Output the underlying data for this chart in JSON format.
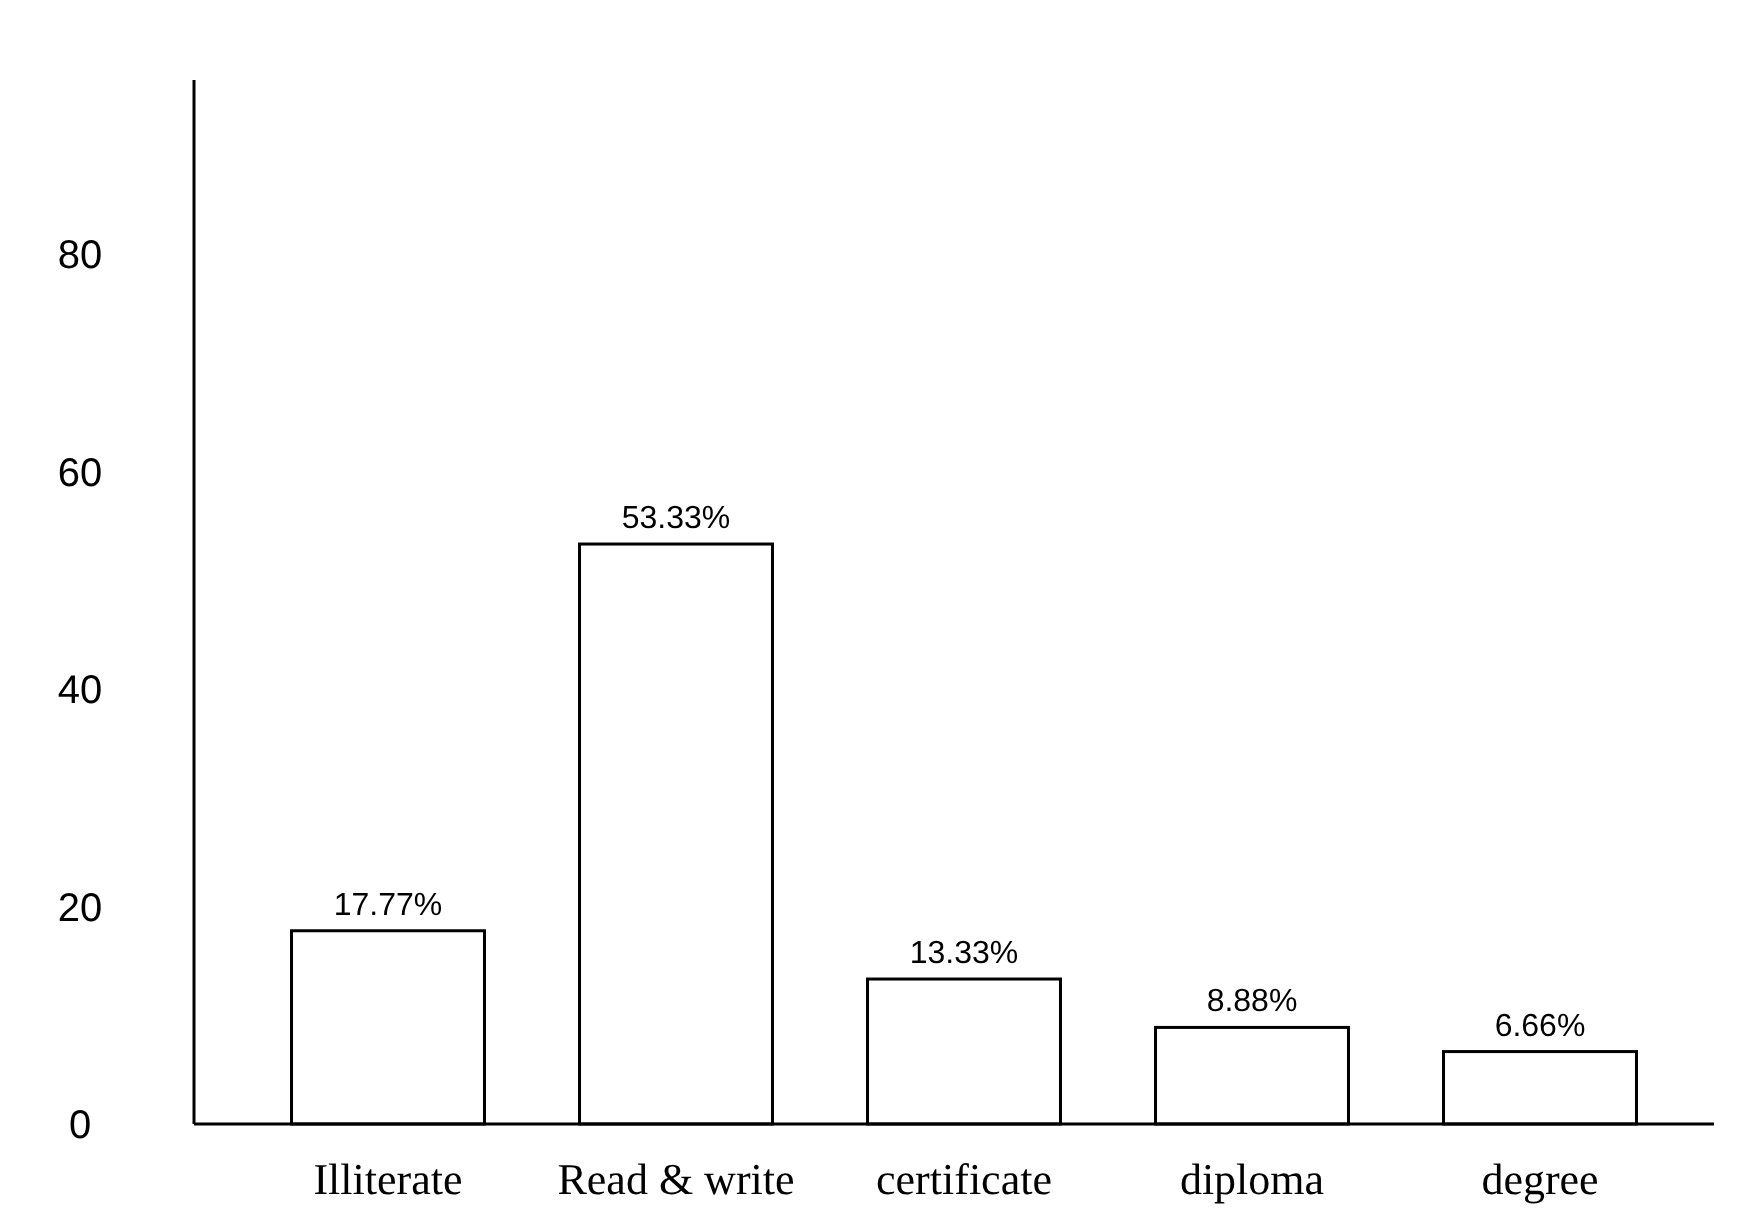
{
  "chart_data": {
    "type": "bar",
    "categories": [
      "Illiterate",
      "Read & write",
      "certificate",
      "diploma",
      "degree"
    ],
    "values": [
      17.77,
      53.33,
      13.33,
      8.88,
      6.66
    ],
    "value_labels": [
      "17.77%",
      "53.33%",
      "13.33%",
      "8.88%",
      "6.66%"
    ],
    "color": "#ffffff",
    "ylim": [
      0,
      96
    ],
    "yticks": [
      0,
      20,
      40,
      60,
      80
    ],
    "grid": false
  }
}
